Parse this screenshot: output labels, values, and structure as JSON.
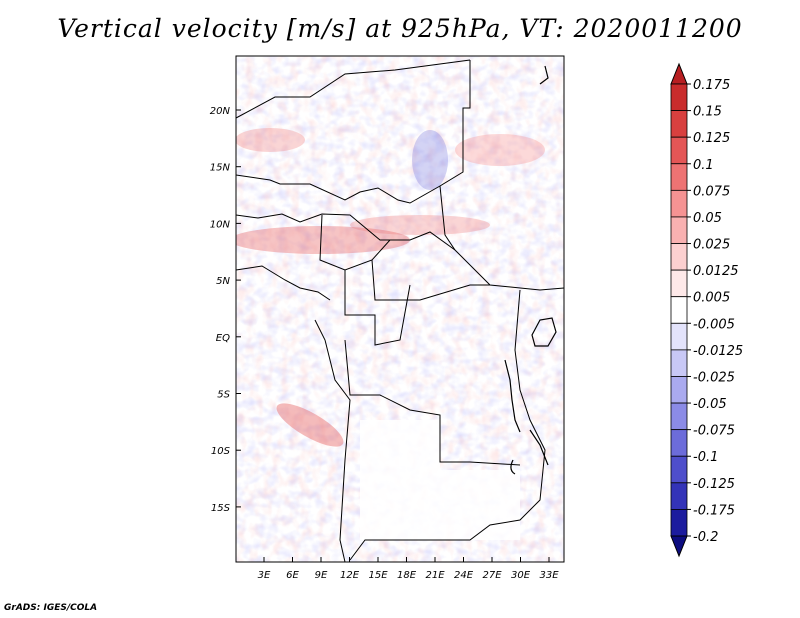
{
  "title": "Vertical velocity [m/s] at 925hPa, VT: 2020011200",
  "credit": "GrADS: IGES/COLA",
  "map": {
    "lat_range": [
      -20,
      25
    ],
    "lon_range": [
      0,
      35
    ],
    "lat_ticks": [
      "20N",
      "15N",
      "10N",
      "5N",
      "EQ",
      "5S",
      "10S",
      "15S"
    ],
    "lon_ticks": [
      "3E",
      "6E",
      "9E",
      "12E",
      "15E",
      "18E",
      "21E",
      "24E",
      "27E",
      "30E",
      "33E"
    ]
  },
  "colorbar": {
    "labels": [
      "0.175",
      "0.15",
      "0.125",
      "0.1",
      "0.075",
      "0.05",
      "0.025",
      "0.0125",
      "0.005",
      "-0.005",
      "-0.0125",
      "-0.025",
      "-0.05",
      "-0.075",
      "-0.1",
      "-0.125",
      "-0.175",
      "-0.2"
    ],
    "colors": [
      "#b81f22",
      "#c92c2c",
      "#d8403f",
      "#e45656",
      "#ee7373",
      "#f59393",
      "#f9b1b1",
      "#fcd0d0",
      "#fee9e9",
      "#ffffff",
      "#e3e3fb",
      "#c8c8f6",
      "#aaaaef",
      "#8b8be6",
      "#6c6cda",
      "#4e4ecb",
      "#3333b8",
      "#1c1c9e",
      "#0d0d80"
    ]
  }
}
